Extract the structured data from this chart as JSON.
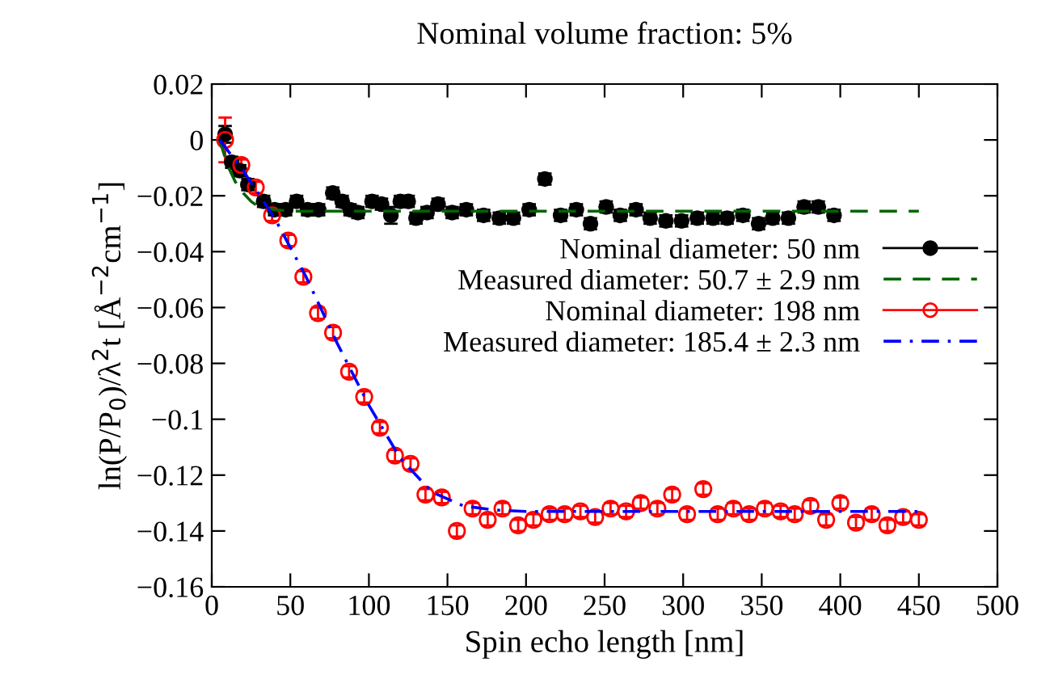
{
  "chart_data": {
    "type": "scatter",
    "title": "Nominal volume fraction: 5%",
    "xlabel": "Spin echo length [nm]",
    "ylabel": "ln(P/P$_{0}$)/λ$^{2}$t [Å$^{−2}$cm$^{−1}$]",
    "xlim": [
      0,
      500
    ],
    "ylim": [
      -0.16,
      0.02
    ],
    "xticks": [
      0,
      50,
      100,
      150,
      200,
      250,
      300,
      350,
      400,
      450,
      500
    ],
    "yticks": [
      {
        "value": -0.16,
        "label": "−0.16"
      },
      {
        "value": -0.14,
        "label": "−0.14"
      },
      {
        "value": -0.12,
        "label": "−0.12"
      },
      {
        "value": -0.1,
        "label": "−0.1"
      },
      {
        "value": -0.08,
        "label": "−0.08"
      },
      {
        "value": -0.06,
        "label": "−0.06"
      },
      {
        "value": -0.04,
        "label": "−0.04"
      },
      {
        "value": -0.02,
        "label": "−0.02"
      },
      0,
      0.02
    ],
    "grid": false,
    "legend": "right",
    "series": [
      {
        "name": "Nominal diameter: 50 nm",
        "color": "#000000",
        "marker": "circle",
        "x": [
          8.5,
          12.7,
          17.8,
          23,
          33,
          40,
          47,
          54,
          61,
          68,
          77,
          83,
          88,
          93,
          102,
          108,
          114,
          120,
          125,
          130,
          137,
          144,
          153,
          162,
          173,
          183,
          192,
          202,
          212,
          222,
          232,
          241,
          251,
          260,
          270,
          279,
          289,
          299,
          309,
          319,
          328,
          338,
          348,
          357,
          367,
          377,
          386,
          396
        ],
        "values": [
          0.002,
          -0.008,
          -0.011,
          -0.016,
          -0.022,
          -0.025,
          -0.025,
          -0.022,
          -0.025,
          -0.025,
          -0.019,
          -0.022,
          -0.025,
          -0.026,
          -0.022,
          -0.023,
          -0.027,
          -0.022,
          -0.022,
          -0.028,
          -0.026,
          -0.023,
          -0.026,
          -0.025,
          -0.027,
          -0.028,
          -0.028,
          -0.025,
          -0.014,
          -0.027,
          -0.025,
          -0.03,
          -0.024,
          -0.027,
          -0.025,
          -0.028,
          -0.029,
          -0.029,
          -0.028,
          -0.028,
          -0.028,
          -0.027,
          -0.03,
          -0.028,
          -0.028,
          -0.024,
          -0.024,
          -0.027
        ],
        "errors": [
          0.003,
          0.002,
          0.002,
          0.002,
          0.002,
          0.002,
          0.002,
          0.002,
          0.002,
          0.002,
          0.002,
          0.002,
          0.002,
          0.002,
          0.002,
          0.002,
          0.003,
          0.002,
          0.002,
          0.002,
          0.002,
          0.002,
          0.002,
          0.002,
          0.002,
          0.002,
          0.002,
          0.002,
          0.002,
          0.002,
          0.002,
          0.002,
          0.002,
          0.002,
          0.002,
          0.002,
          0.002,
          0.002,
          0.002,
          0.002,
          0.002,
          0.002,
          0.002,
          0.002,
          0.002,
          0.002,
          0.002,
          0.002
        ]
      },
      {
        "name": "Measured diameter: 50.7 ± 2.9 nm",
        "type": "line",
        "color": "#006400",
        "line_style": "dashed",
        "x": [
          5,
          10,
          15,
          20,
          25,
          30,
          40,
          50,
          450
        ],
        "values": [
          0.0,
          -0.009,
          -0.015,
          -0.019,
          -0.022,
          -0.024,
          -0.025,
          -0.0255,
          -0.0255
        ]
      },
      {
        "name": "Nominal diameter: 198 nm",
        "color": "#ff0000",
        "marker": "open circle",
        "x": [
          8.5,
          18.8,
          28,
          38.4,
          48.7,
          58.3,
          67.6,
          77.2,
          87.4,
          97,
          107,
          116.6,
          126.5,
          136,
          146.4,
          156,
          166,
          175.6,
          185,
          195,
          204.7,
          215,
          224.6,
          234.6,
          244,
          253.8,
          263.7,
          273,
          283.6,
          293,
          302.5,
          312.8,
          322,
          332,
          342,
          352,
          362,
          371,
          381,
          391,
          400,
          410,
          420,
          430,
          440,
          450
        ],
        "values": [
          0.0,
          -0.009,
          -0.017,
          -0.027,
          -0.036,
          -0.049,
          -0.062,
          -0.069,
          -0.083,
          -0.092,
          -0.103,
          -0.113,
          -0.116,
          -0.127,
          -0.128,
          -0.14,
          -0.132,
          -0.136,
          -0.132,
          -0.138,
          -0.136,
          -0.134,
          -0.134,
          -0.133,
          -0.135,
          -0.132,
          -0.133,
          -0.13,
          -0.132,
          -0.127,
          -0.134,
          -0.125,
          -0.134,
          -0.132,
          -0.134,
          -0.132,
          -0.133,
          -0.134,
          -0.131,
          -0.136,
          -0.13,
          -0.137,
          -0.134,
          -0.138,
          -0.135,
          -0.136
        ],
        "errors": [
          0.008,
          0.002,
          0.002,
          0.002,
          0.002,
          0.002,
          0.002,
          0.002,
          0.002,
          0.002,
          0.002,
          0.002,
          0.002,
          0.002,
          0.002,
          0.002,
          0.002,
          0.002,
          0.002,
          0.002,
          0.002,
          0.002,
          0.002,
          0.002,
          0.002,
          0.002,
          0.002,
          0.002,
          0.002,
          0.002,
          0.002,
          0.002,
          0.002,
          0.002,
          0.002,
          0.002,
          0.002,
          0.002,
          0.002,
          0.002,
          0.002,
          0.002,
          0.002,
          0.002,
          0.002,
          0.002
        ]
      },
      {
        "name": "Measured diameter: 185.4 ± 2.3 nm",
        "type": "line",
        "color": "#0000ff",
        "line_style": "dashdot",
        "x": [
          5,
          20,
          40,
          60,
          80,
          100,
          120,
          140,
          160,
          180,
          200,
          450
        ],
        "values": [
          0.0,
          -0.011,
          -0.028,
          -0.049,
          -0.073,
          -0.095,
          -0.114,
          -0.126,
          -0.131,
          -0.1325,
          -0.133,
          -0.133
        ]
      }
    ]
  }
}
